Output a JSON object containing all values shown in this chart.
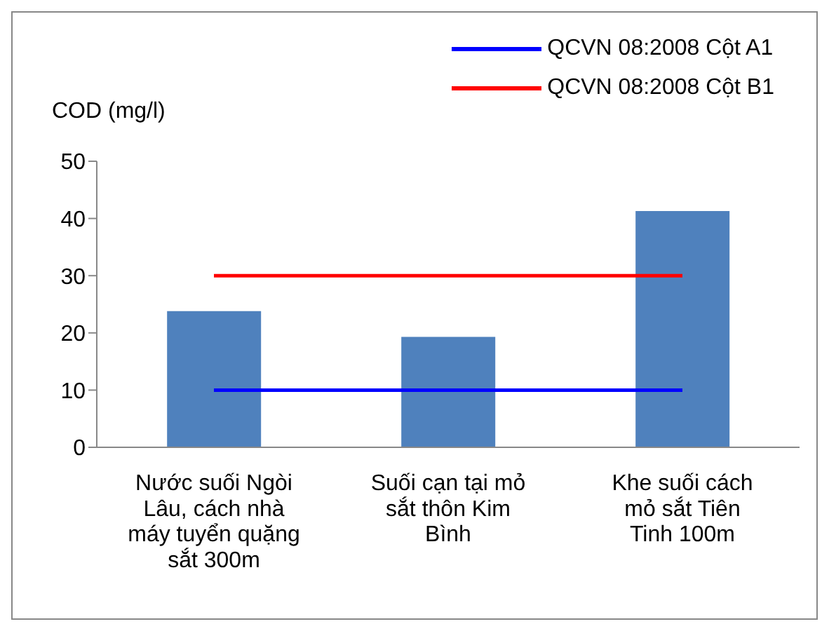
{
  "chart_data": {
    "type": "bar",
    "ylabel": "COD (mg/l)",
    "categories": [
      "Nước suối Ngòi Lâu, cách nhà máy tuyển quặng sắt 300m",
      "Suối cạn tại mỏ sắt thôn Kim Bình",
      "Khe suối cách mỏ sắt Tiên Tinh 100m"
    ],
    "series": [
      {
        "color": "#4f81bd",
        "values": [
          23.8,
          19.3,
          41.3
        ]
      },
      {
        "type": "line",
        "name": "QCVN 08:2008 Cột A1",
        "color": "#0000ff",
        "values": [
          10,
          10,
          10
        ]
      },
      {
        "type": "line",
        "name": "QCVN 08:2008 Cột B1",
        "color": "#ff0000",
        "values": [
          30,
          30,
          30
        ]
      }
    ],
    "ylim": [
      0,
      50
    ],
    "yticks": [
      0,
      10,
      20,
      30,
      40,
      50
    ],
    "legend": "top right",
    "marker": "none",
    "grid": false
  }
}
